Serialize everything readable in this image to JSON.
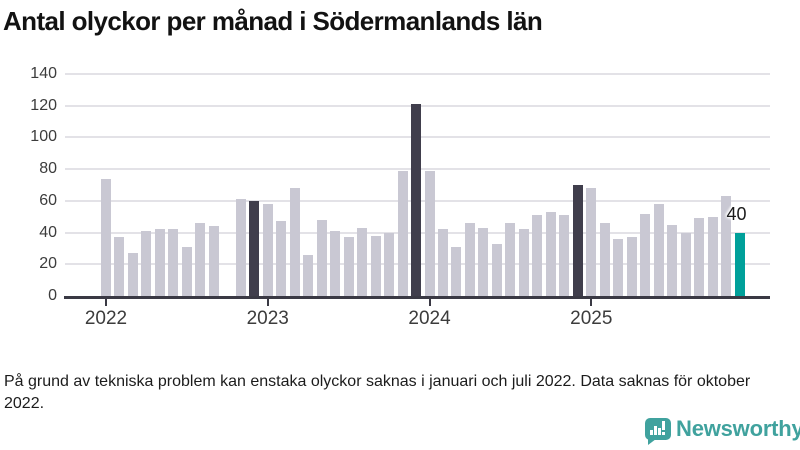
{
  "title": "Antal olyckor per månad i Södermanlands län",
  "footnote": "På grund av tekniska problem kan enstaka olyckor saknas i januari och juli 2022. Data saknas för oktober 2022.",
  "branding": {
    "name": "Newsworthy",
    "icon": "bar-chart-speech-bubble-icon"
  },
  "colors": {
    "bar_default": "#c9c8d3",
    "bar_highlight": "#403e4c",
    "bar_current": "#00a09a",
    "gridline": "#e3e2e7",
    "axis": "#3a3944",
    "brand_teal": "#40a29e"
  },
  "chart_data": {
    "type": "bar",
    "title": "Antal olyckor per månad i Södermanlands län",
    "xlabel": "",
    "ylabel": "",
    "ylim": [
      0,
      140
    ],
    "y_ticks": [
      0,
      20,
      40,
      60,
      80,
      100,
      120,
      140
    ],
    "x_tick_labels": [
      "2022",
      "2023",
      "2024",
      "2025"
    ],
    "grid": "horizontal",
    "note": "one bar per month, Jan 2022 - Dec 2025; null = missing month (Oct 2022)",
    "series": [
      {
        "year": "2022",
        "values": [
          74,
          37,
          27,
          41,
          42,
          42,
          31,
          46,
          44,
          null,
          61,
          60
        ]
      },
      {
        "year": "2023",
        "values": [
          58,
          47,
          68,
          26,
          48,
          41,
          37,
          43,
          38,
          40,
          79,
          121
        ]
      },
      {
        "year": "2024",
        "values": [
          79,
          42,
          31,
          46,
          43,
          33,
          46,
          42,
          51,
          53,
          51,
          70
        ]
      },
      {
        "year": "2025",
        "values": [
          68,
          46,
          36,
          37,
          52,
          58,
          45,
          40,
          49,
          50,
          63,
          40
        ]
      }
    ],
    "highlight_months": [
      "2022-12",
      "2023-12",
      "2024-12"
    ],
    "current_month": {
      "month": "2025-12",
      "value": 40,
      "annotation": "40"
    }
  }
}
